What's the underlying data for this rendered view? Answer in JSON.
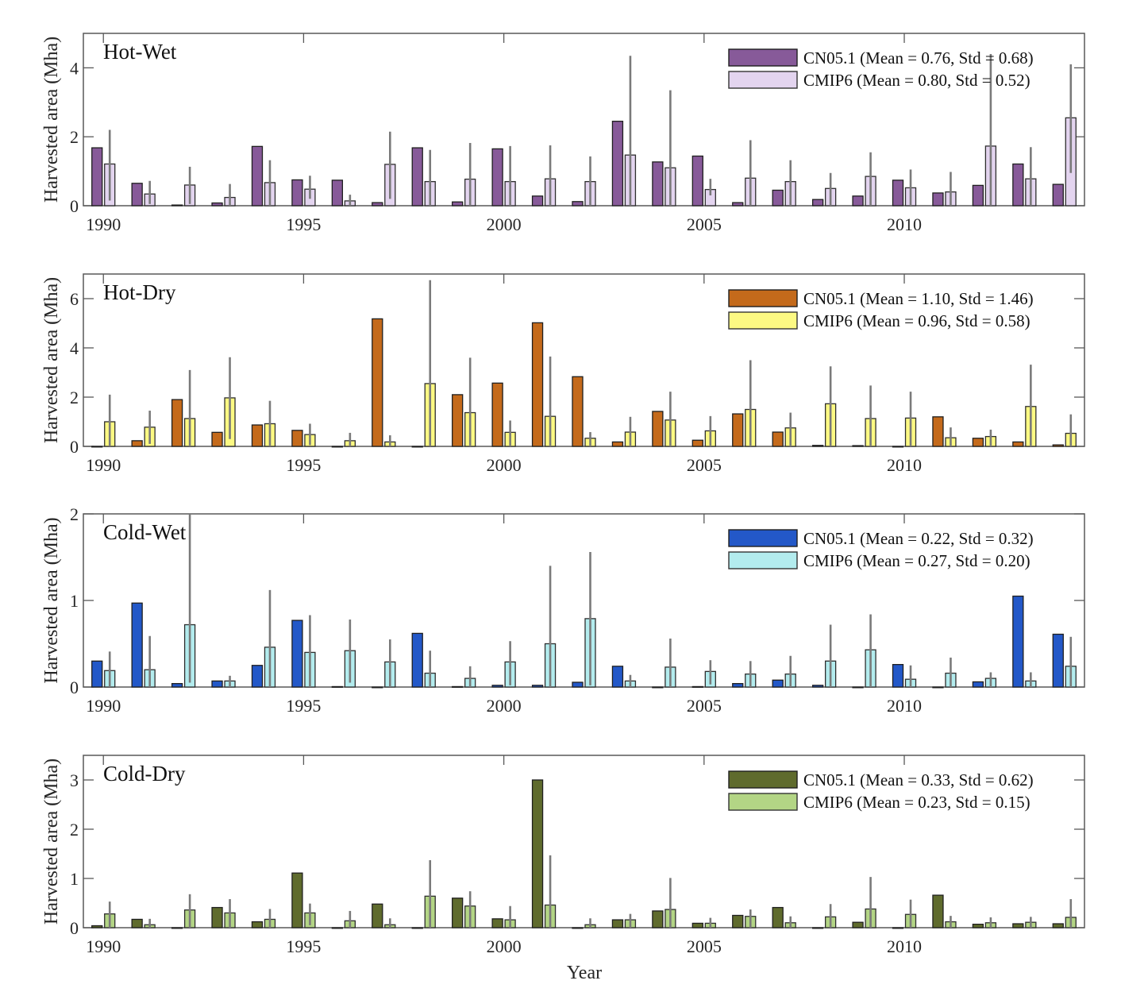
{
  "chart_data": {
    "type": "bar",
    "xlabel": "Year",
    "ylabel": "Harvested area (Mha)",
    "x": [
      1990,
      1991,
      1992,
      1993,
      1994,
      1995,
      1996,
      1997,
      1998,
      1999,
      2000,
      2001,
      2002,
      2003,
      2004,
      2005,
      2006,
      2007,
      2008,
      2009,
      2010,
      2011,
      2012,
      2013,
      2014
    ],
    "xticks": [
      1990,
      1995,
      2000,
      2005,
      2010
    ],
    "xlim": [
      1989.5,
      2014.5
    ],
    "error_bar_color": "#7a7a7a",
    "panels": [
      {
        "title": "Hot-Wet",
        "ylim": [
          0,
          5
        ],
        "yticks": [
          0,
          2,
          4
        ],
        "legend_position": "top-right",
        "series": [
          {
            "name": "CN05.1",
            "legend": "CN05.1 (Mean = 0.76, Std = 0.68)",
            "color": "#875a99",
            "values": [
              1.68,
              0.65,
              0.02,
              0.08,
              1.72,
              0.75,
              0.74,
              0.09,
              1.68,
              0.11,
              1.65,
              0.28,
              0.12,
              2.45,
              1.27,
              1.44,
              0.09,
              0.45,
              0.18,
              0.28,
              0.74,
              0.37,
              0.59,
              1.21,
              0.62
            ]
          },
          {
            "name": "CMIP6",
            "legend": "CMIP6  (Mean = 0.80, Std = 0.52)",
            "color": "#e3d4ef",
            "values": [
              1.21,
              0.34,
              0.6,
              0.24,
              0.67,
              0.48,
              0.14,
              1.2,
              0.7,
              0.77,
              0.7,
              0.78,
              0.7,
              1.47,
              1.1,
              0.47,
              0.8,
              0.7,
              0.5,
              0.85,
              0.52,
              0.4,
              1.73,
              0.78,
              2.55
            ],
            "err_low": [
              0.15,
              0.05,
              0.05,
              0.0,
              0.0,
              0.2,
              0.0,
              0.2,
              0.0,
              0.0,
              0.0,
              0.0,
              0.0,
              0.0,
              0.0,
              0.3,
              0.0,
              0.0,
              0.0,
              0.0,
              0.0,
              0.0,
              0.0,
              0.0,
              0.95
            ],
            "err_high": [
              2.2,
              0.72,
              1.13,
              0.63,
              1.32,
              0.87,
              0.32,
              2.15,
              1.62,
              1.82,
              1.73,
              1.75,
              1.43,
              4.35,
              3.35,
              0.78,
              1.9,
              1.32,
              0.95,
              1.55,
              1.05,
              0.98,
              4.4,
              1.7,
              4.1
            ]
          }
        ]
      },
      {
        "title": "Hot-Dry",
        "ylim": [
          0,
          7
        ],
        "yticks": [
          0,
          2,
          4,
          6
        ],
        "legend_position": "top-right",
        "series": [
          {
            "name": "CN05.1",
            "legend": "CN05.1 (Mean = 1.10, Std = 1.46)",
            "color": "#c46a1b",
            "values": [
              0.0,
              0.23,
              1.9,
              0.57,
              0.87,
              0.65,
              0.0,
              5.18,
              0.0,
              2.1,
              2.57,
              5.02,
              2.83,
              0.18,
              1.42,
              0.25,
              1.32,
              0.58,
              0.04,
              0.03,
              0.0,
              1.2,
              0.33,
              0.18,
              0.06
            ]
          },
          {
            "name": "CMIP6",
            "legend": "CMIP6  (Mean = 0.96, Std = 0.58)",
            "color": "#fcf983",
            "values": [
              1.0,
              0.78,
              1.13,
              1.97,
              0.92,
              0.48,
              0.23,
              0.18,
              2.55,
              1.37,
              0.57,
              1.22,
              0.33,
              0.58,
              1.07,
              0.63,
              1.5,
              0.75,
              1.73,
              1.13,
              1.15,
              0.35,
              0.4,
              1.62,
              0.53
            ],
            "err_low": [
              0.0,
              0.1,
              0.0,
              0.3,
              0.0,
              0.05,
              0.0,
              0.0,
              0.0,
              0.0,
              0.0,
              0.0,
              0.0,
              0.0,
              0.0,
              0.0,
              0.0,
              0.0,
              0.0,
              0.0,
              0.0,
              0.0,
              0.0,
              0.0,
              0.0
            ],
            "err_high": [
              2.1,
              1.45,
              3.1,
              3.62,
              1.85,
              0.92,
              0.55,
              0.45,
              6.75,
              3.6,
              1.05,
              3.65,
              0.58,
              1.2,
              2.22,
              1.23,
              3.5,
              1.37,
              3.25,
              2.47,
              2.22,
              0.77,
              0.68,
              3.32,
              1.3
            ]
          }
        ]
      },
      {
        "title": "Cold-Wet",
        "ylim": [
          0,
          2
        ],
        "yticks": [
          0,
          1,
          2
        ],
        "legend_position": "top-right",
        "series": [
          {
            "name": "CN05.1",
            "legend": "CN05.1 (Mean = 0.22, Std = 0.32)",
            "color": "#2358c8",
            "values": [
              0.3,
              0.97,
              0.04,
              0.07,
              0.25,
              0.77,
              0.005,
              0.0,
              0.62,
              0.005,
              0.02,
              0.02,
              0.055,
              0.24,
              0.0,
              0.005,
              0.04,
              0.08,
              0.02,
              0.0,
              0.26,
              0.0,
              0.06,
              1.05,
              0.61
            ]
          },
          {
            "name": "CMIP6",
            "legend": "CMIP6  (Mean = 0.27, Std = 0.20)",
            "color": "#b3ecee",
            "values": [
              0.19,
              0.2,
              0.72,
              0.07,
              0.46,
              0.4,
              0.42,
              0.29,
              0.16,
              0.1,
              0.29,
              0.5,
              0.79,
              0.07,
              0.23,
              0.18,
              0.15,
              0.15,
              0.3,
              0.43,
              0.09,
              0.16,
              0.1,
              0.07,
              0.24
            ],
            "err_low": [
              0.0,
              0.0,
              0.05,
              0.0,
              0.0,
              0.0,
              0.05,
              0.0,
              0.0,
              0.0,
              0.02,
              0.0,
              0.02,
              0.0,
              0.0,
              0.03,
              0.0,
              0.0,
              0.0,
              0.0,
              0.0,
              0.0,
              0.0,
              0.0,
              0.0
            ],
            "err_high": [
              0.41,
              0.59,
              2.0,
              0.13,
              1.12,
              0.83,
              0.78,
              0.55,
              0.42,
              0.24,
              0.53,
              1.4,
              1.56,
              0.14,
              0.56,
              0.31,
              0.3,
              0.36,
              0.72,
              0.84,
              0.25,
              0.34,
              0.17,
              0.17,
              0.58
            ]
          }
        ]
      },
      {
        "title": "Cold-Dry",
        "ylim": [
          0,
          3.5
        ],
        "yticks": [
          0,
          1,
          2,
          3
        ],
        "legend_position": "top-right",
        "series": [
          {
            "name": "CN05.1",
            "legend": "CN05.1 (Mean = 0.33, Std = 0.62)",
            "color": "#5f6b2d",
            "values": [
              0.04,
              0.17,
              0.0,
              0.41,
              0.12,
              1.11,
              0.0,
              0.48,
              0.0,
              0.6,
              0.18,
              3.0,
              0.0,
              0.16,
              0.34,
              0.09,
              0.25,
              0.41,
              0.0,
              0.11,
              0.0,
              0.66,
              0.07,
              0.08,
              0.08
            ]
          },
          {
            "name": "CMIP6",
            "legend": "CMIP6  (Mean = 0.23, Std = 0.15)",
            "color": "#b3d585",
            "values": [
              0.28,
              0.06,
              0.36,
              0.3,
              0.17,
              0.3,
              0.14,
              0.06,
              0.64,
              0.44,
              0.16,
              0.46,
              0.06,
              0.16,
              0.37,
              0.09,
              0.23,
              0.1,
              0.22,
              0.38,
              0.27,
              0.12,
              0.1,
              0.11,
              0.21
            ],
            "err_low": [
              0.0,
              0.0,
              0.0,
              0.0,
              0.0,
              0.05,
              0.0,
              0.0,
              0.0,
              0.0,
              0.0,
              0.0,
              0.0,
              0.0,
              0.0,
              0.0,
              0.0,
              0.0,
              0.0,
              0.0,
              0.0,
              0.0,
              0.0,
              0.0,
              0.0
            ],
            "err_high": [
              0.53,
              0.18,
              0.68,
              0.58,
              0.38,
              0.49,
              0.34,
              0.19,
              1.37,
              0.74,
              0.44,
              1.47,
              0.19,
              0.28,
              1.01,
              0.2,
              0.37,
              0.23,
              0.48,
              1.03,
              0.57,
              0.24,
              0.21,
              0.22,
              0.58
            ]
          }
        ]
      }
    ]
  }
}
